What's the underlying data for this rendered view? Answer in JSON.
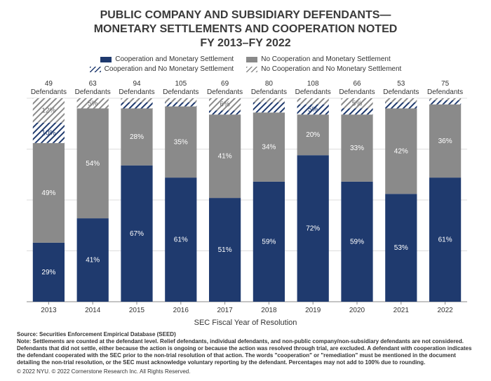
{
  "title_line1": "PUBLIC COMPANY AND SUBSIDIARY DEFENDANTS—",
  "title_line2": "MONETARY SETTLEMENTS AND COOPERATION NOTED",
  "title_line3": "FY 2013–FY 2022",
  "title_fontsize": 16,
  "title_color": "#3a3a3a",
  "legend": {
    "items": [
      {
        "label": "Cooperation and Monetary Settlement",
        "fill": "#1f3a6e",
        "pattern": "solid"
      },
      {
        "label": "No Cooperation and Monetary Settlement",
        "fill": "#8a8a8a",
        "pattern": "solid"
      },
      {
        "label": "Cooperation and No Monetary Settlement",
        "fill": "#1f3a6e",
        "pattern": "hatch"
      },
      {
        "label": "No Cooperation and No Monetary Settlement",
        "fill": "#8a8a8a",
        "pattern": "hatch"
      }
    ]
  },
  "chart": {
    "type": "stacked-bar",
    "xlabel": "SEC Fiscal Year of Resolution",
    "ylim": [
      0,
      100
    ],
    "ytick_step": 25,
    "grid_color": "#dcdcdc",
    "axis_color": "#888888",
    "background_color": "#ffffff",
    "bar_width": 0.72,
    "label_fontsize": 10,
    "topcount_fontsize": 10,
    "years": [
      "2013",
      "2014",
      "2015",
      "2016",
      "2017",
      "2018",
      "2019",
      "2020",
      "2021",
      "2022"
    ],
    "top_counts": [
      "49",
      "63",
      "94",
      "105",
      "69",
      "80",
      "108",
      "66",
      "53",
      "75"
    ],
    "top_count_suffix": "Defendants",
    "series": [
      {
        "key": "coop_mon",
        "color": "#1f3a6e",
        "pattern": "solid"
      },
      {
        "key": "nocoop_mon",
        "color": "#8a8a8a",
        "pattern": "solid"
      },
      {
        "key": "coop_nomon",
        "color": "#1f3a6e",
        "pattern": "hatch"
      },
      {
        "key": "nocoop_nomon",
        "color": "#8a8a8a",
        "pattern": "hatch"
      }
    ],
    "values": {
      "coop_mon": [
        29,
        41,
        67,
        61,
        51,
        59,
        72,
        59,
        53,
        61
      ],
      "nocoop_mon": [
        49,
        54,
        28,
        35,
        41,
        34,
        20,
        33,
        42,
        36
      ],
      "coop_nomon": [
        10,
        0,
        3,
        2,
        2,
        5,
        5,
        3,
        3,
        2
      ],
      "nocoop_nomon": [
        12,
        5,
        2,
        2,
        6,
        2,
        3,
        5,
        2,
        1
      ]
    },
    "inbar_labels": [
      {
        "year": 0,
        "seg": "coop_mon",
        "text": "29%"
      },
      {
        "year": 0,
        "seg": "nocoop_mon",
        "text": "49%"
      },
      {
        "year": 0,
        "seg": "coop_nomon",
        "text": "10%"
      },
      {
        "year": 0,
        "seg": "nocoop_nomon",
        "text": "12%"
      },
      {
        "year": 1,
        "seg": "coop_mon",
        "text": "41%"
      },
      {
        "year": 1,
        "seg": "nocoop_mon",
        "text": "54%"
      },
      {
        "year": 1,
        "seg": "nocoop_nomon",
        "text": "5%"
      },
      {
        "year": 2,
        "seg": "coop_mon",
        "text": "67%"
      },
      {
        "year": 2,
        "seg": "nocoop_mon",
        "text": "28%"
      },
      {
        "year": 3,
        "seg": "coop_mon",
        "text": "61%"
      },
      {
        "year": 3,
        "seg": "nocoop_mon",
        "text": "35%"
      },
      {
        "year": 4,
        "seg": "coop_mon",
        "text": "51%"
      },
      {
        "year": 4,
        "seg": "nocoop_mon",
        "text": "41%"
      },
      {
        "year": 4,
        "seg": "nocoop_nomon",
        "text": "6%"
      },
      {
        "year": 5,
        "seg": "coop_mon",
        "text": "59%"
      },
      {
        "year": 5,
        "seg": "nocoop_mon",
        "text": "34%"
      },
      {
        "year": 6,
        "seg": "coop_mon",
        "text": "72%"
      },
      {
        "year": 6,
        "seg": "nocoop_mon",
        "text": "20%"
      },
      {
        "year": 6,
        "seg": "coop_nomon",
        "text": "5%"
      },
      {
        "year": 7,
        "seg": "coop_mon",
        "text": "59%"
      },
      {
        "year": 7,
        "seg": "nocoop_mon",
        "text": "33%"
      },
      {
        "year": 7,
        "seg": "nocoop_nomon",
        "text": "5%"
      },
      {
        "year": 8,
        "seg": "coop_mon",
        "text": "53%"
      },
      {
        "year": 8,
        "seg": "nocoop_mon",
        "text": "42%"
      },
      {
        "year": 9,
        "seg": "coop_mon",
        "text": "61%"
      },
      {
        "year": 9,
        "seg": "nocoop_mon",
        "text": "36%"
      }
    ],
    "inbar_label_colors": {
      "coop_mon": "#ffffff",
      "nocoop_mon": "#ffffff",
      "coop_nomon": "#1f3a6e",
      "nocoop_nomon": "#707070"
    }
  },
  "footer": {
    "source": "Source: Securities Enforcement Empirical Database (SEED)",
    "note": "Note: Settlements are counted at the defendant level. Relief defendants, individual defendants, and non-public company/non-subsidiary defendants are not considered. Defendants that did not settle, either because the action is ongoing or because the action was resolved through trial, are excluded. A defendant with cooperation indicates the defendant cooperated with the SEC prior to the non-trial resolution of that action. The words \"cooperation\" or \"remediation\" must be mentioned in the document detailing the non-trial resolution, or the SEC must acknowledge voluntary reporting by the defendant. Percentages may not add to 100% due to rounding.",
    "copyright": "© 2022 NYU. © 2022 Cornerstone Research Inc. All Rights Reserved."
  }
}
